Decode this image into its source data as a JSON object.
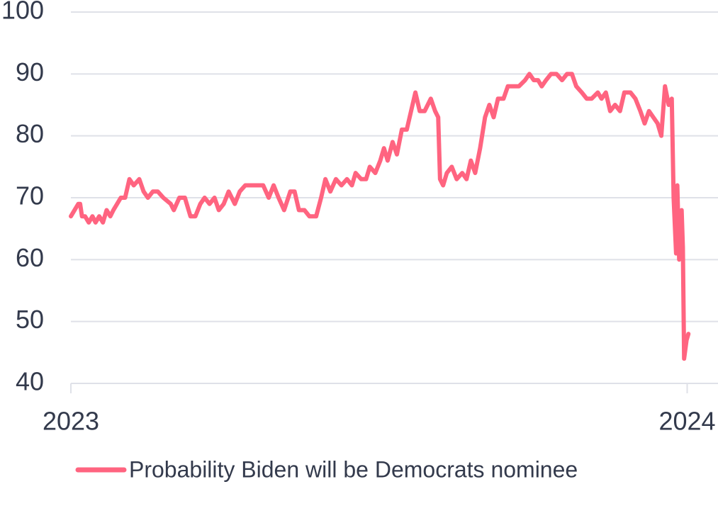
{
  "chart_data": {
    "type": "line",
    "xlim": [
      2023,
      2024.05
    ],
    "xticks": [
      2023,
      2024
    ],
    "ylim": [
      40,
      100
    ],
    "yticks": [
      40,
      50,
      60,
      70,
      80,
      90,
      100
    ],
    "grid": true,
    "legend": "bottom",
    "series": [
      {
        "name": "Probability Biden will be Democrats nominee",
        "color": "#ff6480",
        "x": [
          2023.0,
          2023.006,
          2023.012,
          2023.015,
          2023.018,
          2023.023,
          2023.029,
          2023.035,
          2023.04,
          2023.046,
          2023.052,
          2023.058,
          2023.064,
          2023.069,
          2023.075,
          2023.081,
          2023.088,
          2023.095,
          2023.102,
          2023.111,
          2023.118,
          2023.125,
          2023.133,
          2023.141,
          2023.15,
          2023.162,
          2023.167,
          2023.176,
          2023.185,
          2023.194,
          2023.202,
          2023.21,
          2023.217,
          2023.225,
          2023.233,
          2023.24,
          2023.248,
          2023.256,
          2023.266,
          2023.274,
          2023.283,
          2023.291,
          2023.3,
          2023.312,
          2023.321,
          2023.329,
          2023.337,
          2023.346,
          2023.356,
          2023.363,
          2023.37,
          2023.379,
          2023.387,
          2023.398,
          2023.406,
          2023.413,
          2023.421,
          2023.43,
          2023.439,
          2023.448,
          2023.456,
          2023.462,
          2023.471,
          2023.479,
          2023.485,
          2023.494,
          2023.502,
          2023.508,
          2023.514,
          2023.522,
          2023.529,
          2023.537,
          2023.545,
          2023.552,
          2023.559,
          2023.566,
          2023.574,
          2023.584,
          2023.591,
          2023.596,
          2023.599,
          2023.604,
          2023.61,
          2023.618,
          2023.626,
          2023.635,
          2023.642,
          2023.649,
          2023.656,
          2023.664,
          2023.672,
          2023.679,
          2023.686,
          2023.693,
          2023.702,
          2023.709,
          2023.718,
          2023.727,
          2023.737,
          2023.744,
          2023.751,
          2023.758,
          2023.764,
          2023.771,
          2023.779,
          2023.788,
          2023.797,
          2023.805,
          2023.813,
          2023.82,
          2023.829,
          2023.837,
          2023.845,
          2023.855,
          2023.861,
          2023.868,
          2023.875,
          2023.883,
          2023.891,
          2023.898,
          2023.908,
          2023.916,
          2023.924,
          2023.931,
          2023.938,
          2023.945,
          2023.952,
          2023.958,
          2023.964,
          2023.97,
          2023.975,
          2023.978,
          2023.982,
          2023.984,
          2023.987,
          2023.991,
          2023.993,
          2023.995,
          2023.999,
          2024.002
        ],
        "values": [
          67,
          68,
          69,
          69,
          67,
          67,
          66,
          67,
          66,
          67,
          66,
          68,
          67,
          68,
          69,
          70,
          70,
          73,
          72,
          73,
          71,
          70,
          71,
          71,
          70,
          69,
          68,
          70,
          70,
          67,
          67,
          69,
          70,
          69,
          70,
          68,
          69,
          71,
          69,
          71,
          72,
          72,
          72,
          72,
          70,
          72,
          70,
          68,
          71,
          71,
          68,
          68,
          67,
          67,
          70,
          73,
          71,
          73,
          72,
          73,
          72,
          74,
          73,
          73,
          75,
          74,
          76,
          78,
          76,
          79,
          77,
          81,
          81,
          84,
          87,
          84,
          84,
          86,
          84,
          83,
          73,
          72,
          74,
          75,
          73,
          74,
          73,
          76,
          74,
          78,
          83,
          85,
          83,
          86,
          86,
          88,
          88,
          88,
          89,
          90,
          89,
          89,
          88,
          89,
          90,
          90,
          89,
          90,
          90,
          88,
          87,
          86,
          86,
          87,
          86,
          87,
          84,
          85,
          84,
          87,
          87,
          86,
          84,
          82,
          84,
          83,
          82,
          80,
          88,
          85,
          86,
          70,
          61,
          72,
          60,
          68,
          62,
          44,
          47,
          48
        ]
      }
    ]
  }
}
